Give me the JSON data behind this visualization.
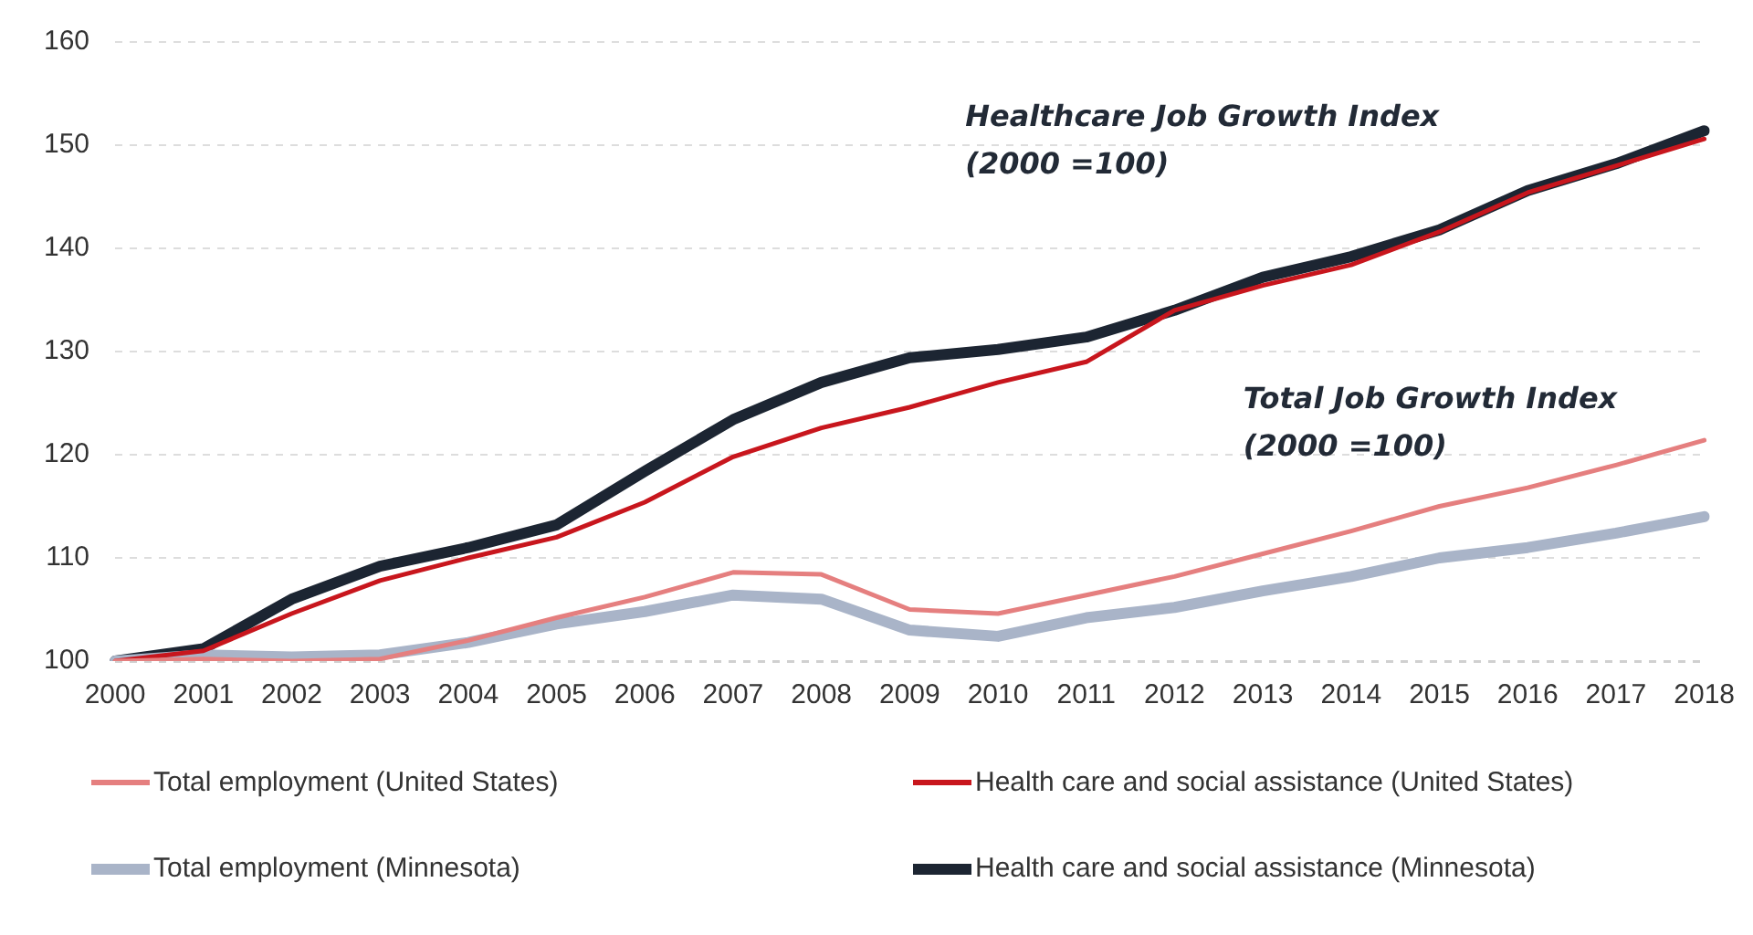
{
  "chart_data": {
    "type": "line",
    "categories": [
      "2000",
      "2001",
      "2002",
      "2003",
      "2004",
      "2005",
      "2006",
      "2007",
      "2008",
      "2009",
      "2010",
      "2011",
      "2012",
      "2013",
      "2014",
      "2015",
      "2016",
      "2017",
      "2018"
    ],
    "series": [
      {
        "name": "Total employment (United States)",
        "color": "#e57f7f",
        "values": [
          100,
          100.2,
          100,
          100.2,
          102,
          104.2,
          106.2,
          108.6,
          108.4,
          105,
          104.6,
          106.4,
          108.2,
          110.4,
          112.6,
          115,
          116.8,
          119,
          121.4
        ]
      },
      {
        "name": "Health care and social assistance (United States)",
        "color": "#c8161d",
        "values": [
          100,
          101,
          104.6,
          107.8,
          110,
          112,
          115.4,
          119.8,
          122.6,
          124.6,
          127,
          129,
          134,
          136.4,
          138.4,
          141.6,
          145.4,
          148,
          150.6
        ]
      },
      {
        "name": "Total employment (Minnesota)",
        "color": "#a9b4c8",
        "values": [
          100,
          100.6,
          100.4,
          100.6,
          101.8,
          103.6,
          104.8,
          106.4,
          106,
          103,
          102.4,
          104.2,
          105.2,
          106.8,
          108.2,
          110,
          111,
          112.4,
          114
        ]
      },
      {
        "name": "Health care and social assistance (Minnesota)",
        "color": "#1c2532",
        "values": [
          100,
          101.2,
          106,
          109.2,
          111,
          113.2,
          118.4,
          123.4,
          127,
          129.4,
          130.2,
          131.4,
          134,
          137.2,
          139.2,
          141.8,
          145.6,
          148.2,
          151.4
        ]
      }
    ],
    "ylim": [
      100,
      160
    ],
    "yticks": [
      100,
      110,
      120,
      130,
      140,
      150,
      160
    ],
    "grid": "y",
    "legend": "bottom",
    "marker": "none",
    "line_style": "solid",
    "annotations": [
      "Healthcare Job Growth Index\n(2000 =100)",
      "Total Job Growth Index\n(2000 =100)"
    ]
  }
}
